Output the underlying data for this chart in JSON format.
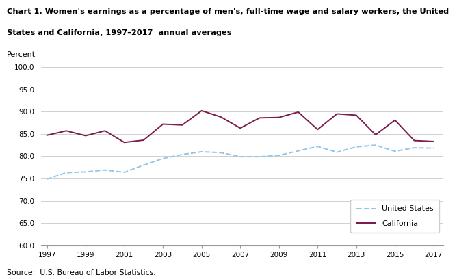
{
  "title_line1": "Chart 1. Women's earnings as a percentage of men's, full-time wage and salary workers, the United",
  "title_line2": "States and California, 1997–2017  annual averages",
  "ylabel": "Percent",
  "source": "Source:  U.S. Bureau of Labor Statistics.",
  "years": [
    1997,
    1998,
    1999,
    2000,
    2001,
    2002,
    2003,
    2004,
    2005,
    2006,
    2007,
    2008,
    2009,
    2010,
    2011,
    2012,
    2013,
    2014,
    2015,
    2016,
    2017
  ],
  "us_data": [
    74.9,
    76.3,
    76.5,
    76.9,
    76.4,
    78.0,
    79.5,
    80.4,
    81.0,
    80.8,
    79.9,
    79.9,
    80.2,
    81.2,
    82.2,
    80.9,
    82.1,
    82.5,
    81.1,
    81.9,
    81.8
  ],
  "ca_data": [
    84.7,
    85.7,
    84.6,
    85.7,
    83.1,
    83.6,
    87.2,
    87.0,
    90.2,
    88.8,
    86.3,
    88.6,
    88.7,
    89.9,
    86.0,
    89.5,
    89.2,
    84.8,
    88.1,
    83.5,
    83.3
  ],
  "us_color": "#92C6E8",
  "ca_color": "#7B1C4B",
  "ylim": [
    60.0,
    100.0
  ],
  "yticks": [
    60.0,
    65.0,
    70.0,
    75.0,
    80.0,
    85.0,
    90.0,
    95.0,
    100.0
  ],
  "xticks": [
    1997,
    1999,
    2001,
    2003,
    2005,
    2007,
    2009,
    2011,
    2013,
    2015,
    2017
  ],
  "bg_color": "#ffffff",
  "grid_color": "#d0d0d0"
}
